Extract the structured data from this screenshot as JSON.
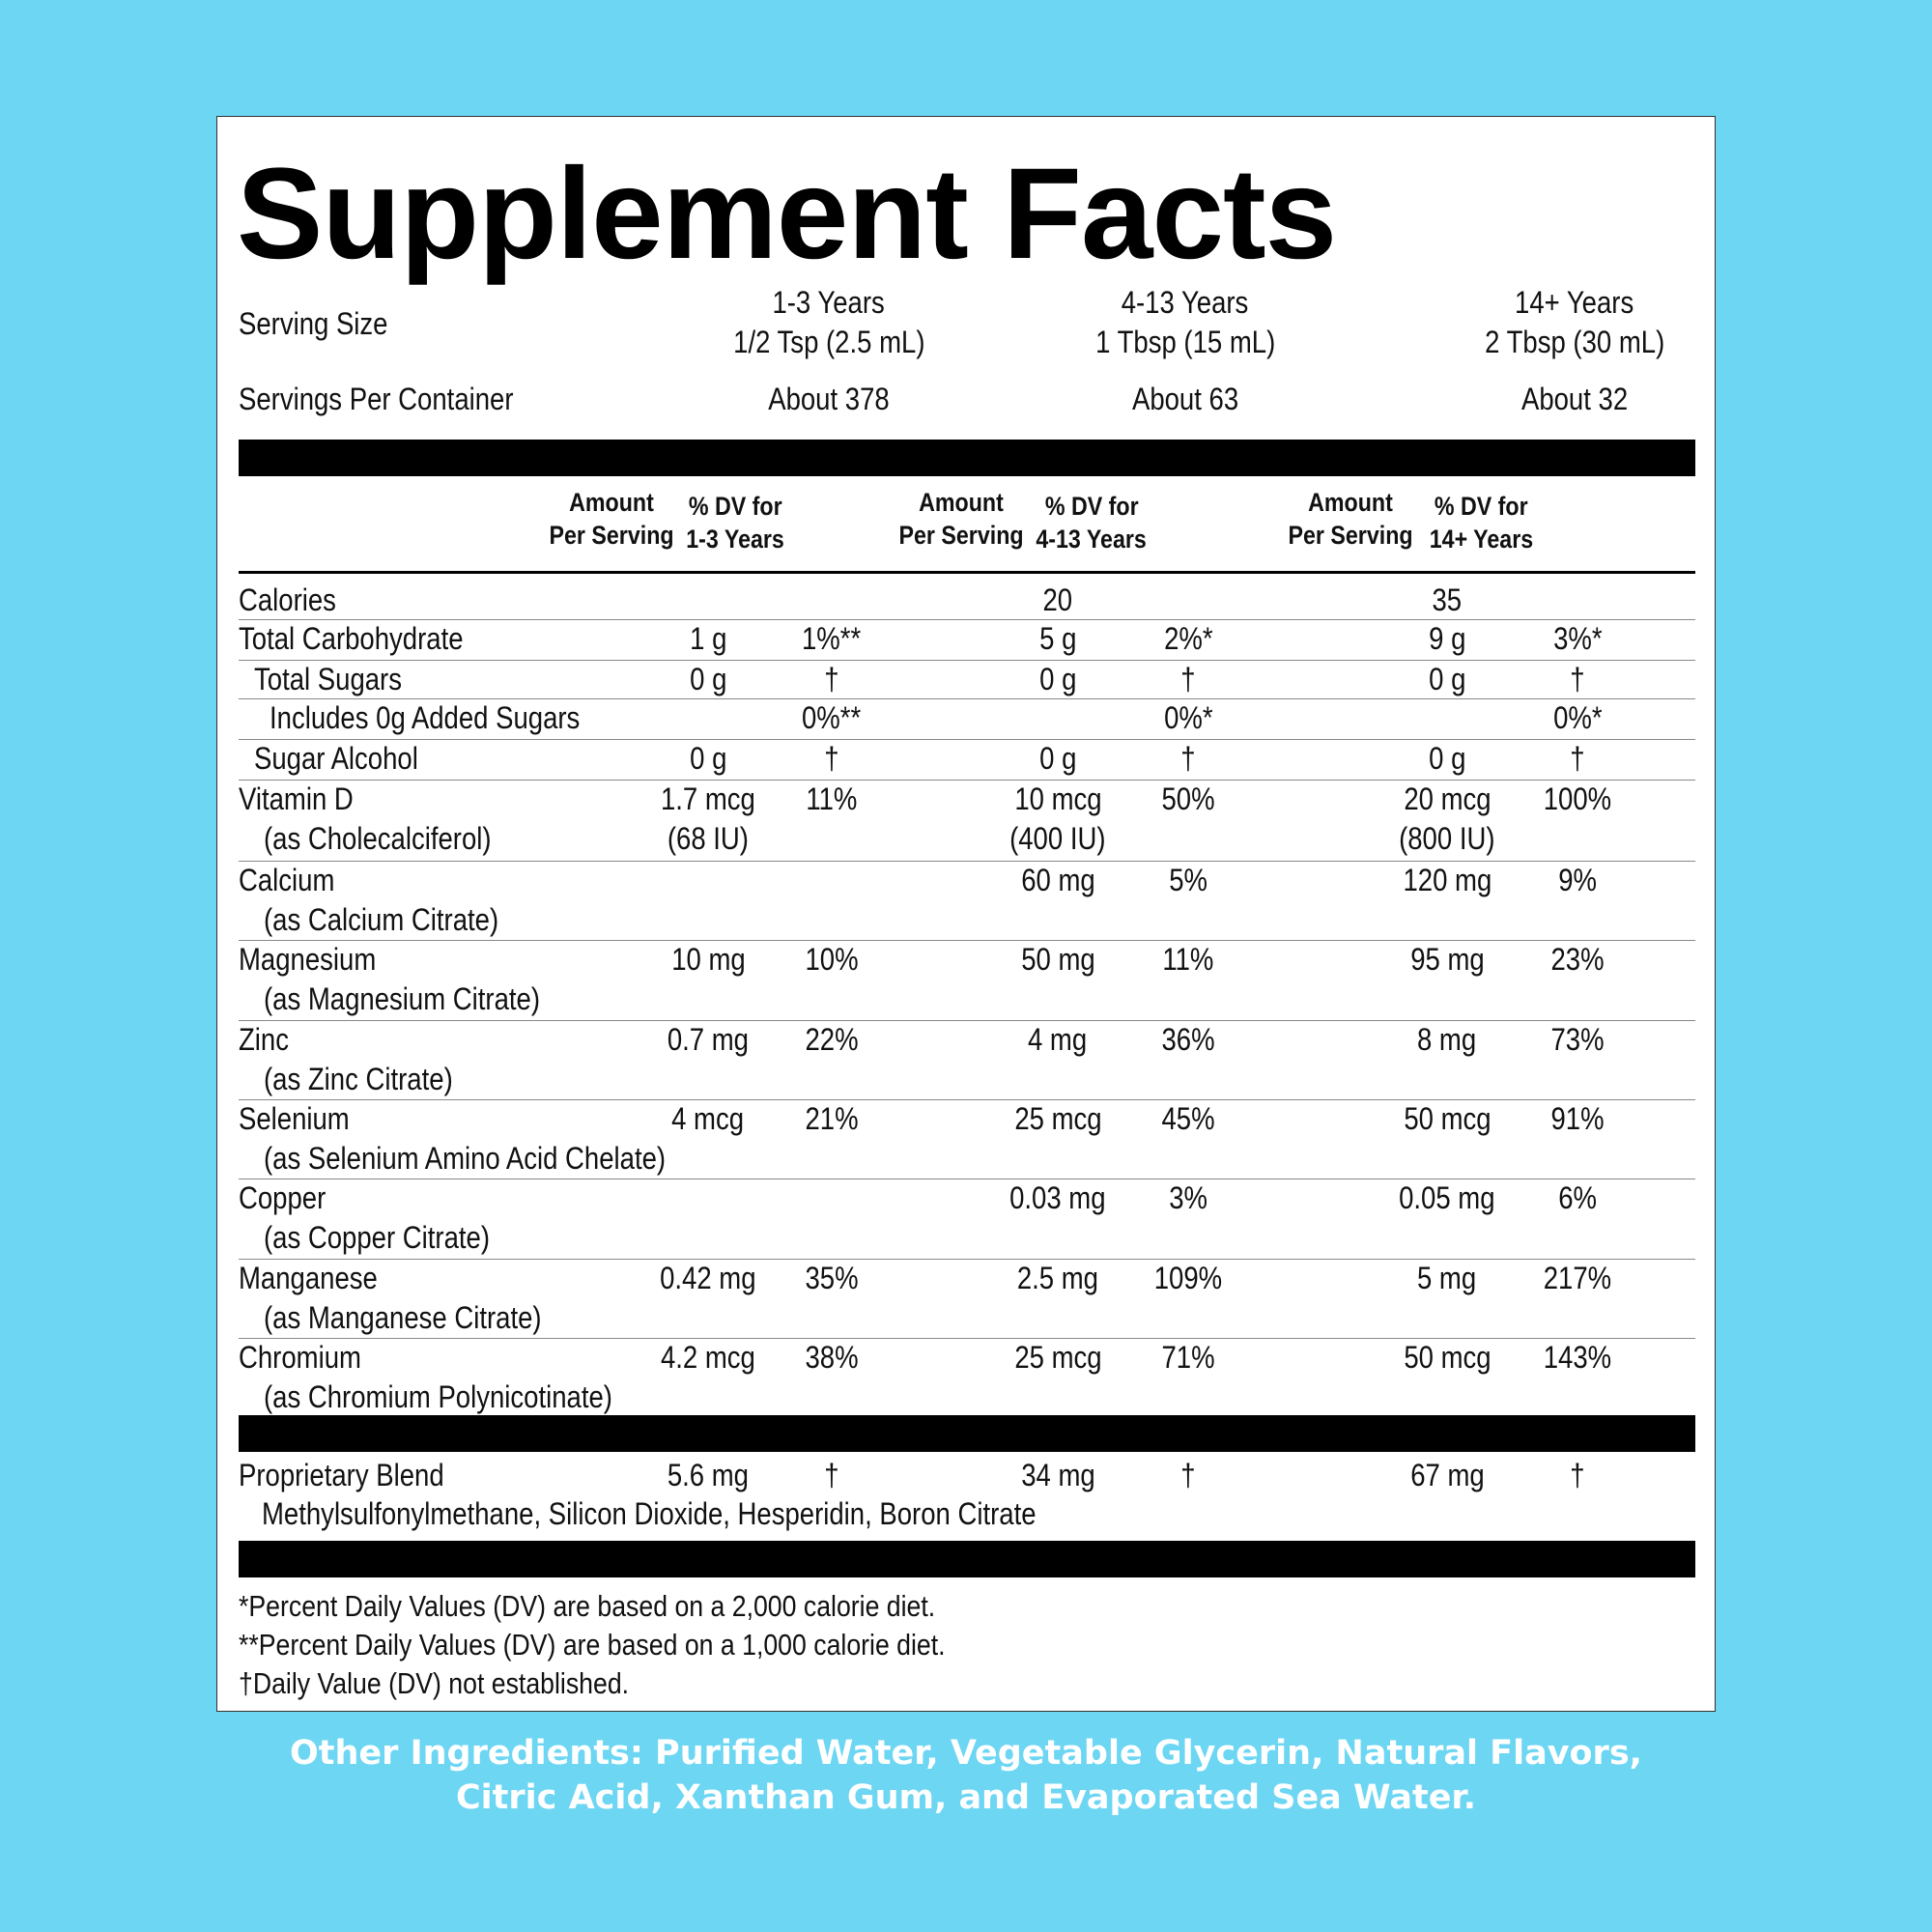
{
  "title": "Supplement Facts",
  "serving": {
    "label": "Serving Size",
    "spc_label": "Servings Per Container",
    "groups": [
      {
        "age": "1-3 Years",
        "size": "1/2 Tsp (2.5 mL)",
        "spc": "About 378"
      },
      {
        "age": "4-13 Years",
        "size": "1 Tbsp (15 mL)",
        "spc": "About 63"
      },
      {
        "age": "14+ Years",
        "size": "2 Tbsp (30 mL)",
        "spc": "About 32"
      }
    ]
  },
  "headers": [
    {
      "amount_l1": "Amount",
      "amount_l2": "Per Serving",
      "dv_l1": "% DV for",
      "dv_l2": "1-3 Years"
    },
    {
      "amount_l1": "Amount",
      "amount_l2": "Per Serving",
      "dv_l1": "% DV for",
      "dv_l2": "4-13 Years"
    },
    {
      "amount_l1": "Amount",
      "amount_l2": "Per Serving",
      "dv_l1": "% DV for",
      "dv_l2": "14+ Years"
    }
  ],
  "rows": [
    {
      "name": "Calories",
      "sub": "",
      "a1": "",
      "a1b": "",
      "d1": "",
      "a2": "20",
      "a2b": "",
      "d2": "",
      "a3": "35",
      "a3b": "",
      "d3": ""
    },
    {
      "name": "Total Carbohydrate",
      "sub": "",
      "a1": "1 g",
      "a1b": "",
      "d1": "1%**",
      "a2": "5 g",
      "a2b": "",
      "d2": "2%*",
      "a3": "9 g",
      "a3b": "",
      "d3": "3%*"
    },
    {
      "name": "Total Sugars",
      "sub": "",
      "a1": "0 g",
      "a1b": "",
      "d1": "†",
      "a2": "0 g",
      "a2b": "",
      "d2": "†",
      "a3": "0 g",
      "a3b": "",
      "d3": "†"
    },
    {
      "name": "Includes 0g Added Sugars",
      "sub": "",
      "a1": "",
      "a1b": "",
      "d1": "0%**",
      "a2": "",
      "a2b": "",
      "d2": "0%*",
      "a3": "",
      "a3b": "",
      "d3": "0%*"
    },
    {
      "name": "Sugar Alcohol",
      "sub": "",
      "a1": "0 g",
      "a1b": "",
      "d1": "†",
      "a2": "0 g",
      "a2b": "",
      "d2": "†",
      "a3": "0 g",
      "a3b": "",
      "d3": "†"
    },
    {
      "name": "Vitamin D",
      "sub": "(as Cholecalciferol)",
      "a1": "1.7 mcg",
      "a1b": "(68 IU)",
      "d1": "11%",
      "a2": "10 mcg",
      "a2b": "(400 IU)",
      "d2": "50%",
      "a3": "20 mcg",
      "a3b": "(800 IU)",
      "d3": "100%"
    },
    {
      "name": "Calcium",
      "sub": "(as Calcium Citrate)",
      "a1": "",
      "a1b": "",
      "d1": "",
      "a2": "60 mg",
      "a2b": "",
      "d2": "5%",
      "a3": "120 mg",
      "a3b": "",
      "d3": "9%"
    },
    {
      "name": "Magnesium",
      "sub": "(as Magnesium Citrate)",
      "a1": "10 mg",
      "a1b": "",
      "d1": "10%",
      "a2": "50 mg",
      "a2b": "",
      "d2": "11%",
      "a3": "95 mg",
      "a3b": "",
      "d3": "23%"
    },
    {
      "name": "Zinc",
      "sub": "(as Zinc Citrate)",
      "a1": "0.7 mg",
      "a1b": "",
      "d1": "22%",
      "a2": "4 mg",
      "a2b": "",
      "d2": "36%",
      "a3": "8 mg",
      "a3b": "",
      "d3": "73%"
    },
    {
      "name": "Selenium",
      "sub": "(as Selenium Amino Acid Chelate)",
      "a1": "4 mcg",
      "a1b": "",
      "d1": "21%",
      "a2": "25 mcg",
      "a2b": "",
      "d2": "45%",
      "a3": "50 mcg",
      "a3b": "",
      "d3": "91%"
    },
    {
      "name": "Copper",
      "sub": "(as Copper Citrate)",
      "a1": "",
      "a1b": "",
      "d1": "",
      "a2": "0.03 mg",
      "a2b": "",
      "d2": "3%",
      "a3": "0.05 mg",
      "a3b": "",
      "d3": "6%"
    },
    {
      "name": "Manganese",
      "sub": "(as Manganese Citrate)",
      "a1": "0.42 mg",
      "a1b": "",
      "d1": "35%",
      "a2": "2.5 mg",
      "a2b": "",
      "d2": "109%",
      "a3": "5 mg",
      "a3b": "",
      "d3": "217%"
    },
    {
      "name": "Chromium",
      "sub": "(as Chromium Polynicotinate)",
      "a1": "4.2 mcg",
      "a1b": "",
      "d1": "38%",
      "a2": "25 mcg",
      "a2b": "",
      "d2": "71%",
      "a3": "50 mcg",
      "a3b": "",
      "d3": "143%"
    }
  ],
  "blend": {
    "name": "Proprietary Blend",
    "a1": "5.6 mg",
    "d1": "†",
    "a2": "34 mg",
    "d2": "†",
    "a3": "67 mg",
    "d3": "†",
    "ingredients": "Methylsulfonylmethane, Silicon Dioxide, Hesperidin, Boron Citrate"
  },
  "footnotes": [
    "*Percent Daily Values (DV) are based on a 2,000 calorie diet.",
    "**Percent Daily Values (DV) are based on a 1,000 calorie diet.",
    "†Daily Value (DV) not established."
  ],
  "other_ingredients": {
    "line1": "Other Ingredients: Purified Water, Vegetable Glycerin, Natural Flavors,",
    "line2": "Citric Acid, Xanthan Gum, and Evaporated Sea Water."
  }
}
